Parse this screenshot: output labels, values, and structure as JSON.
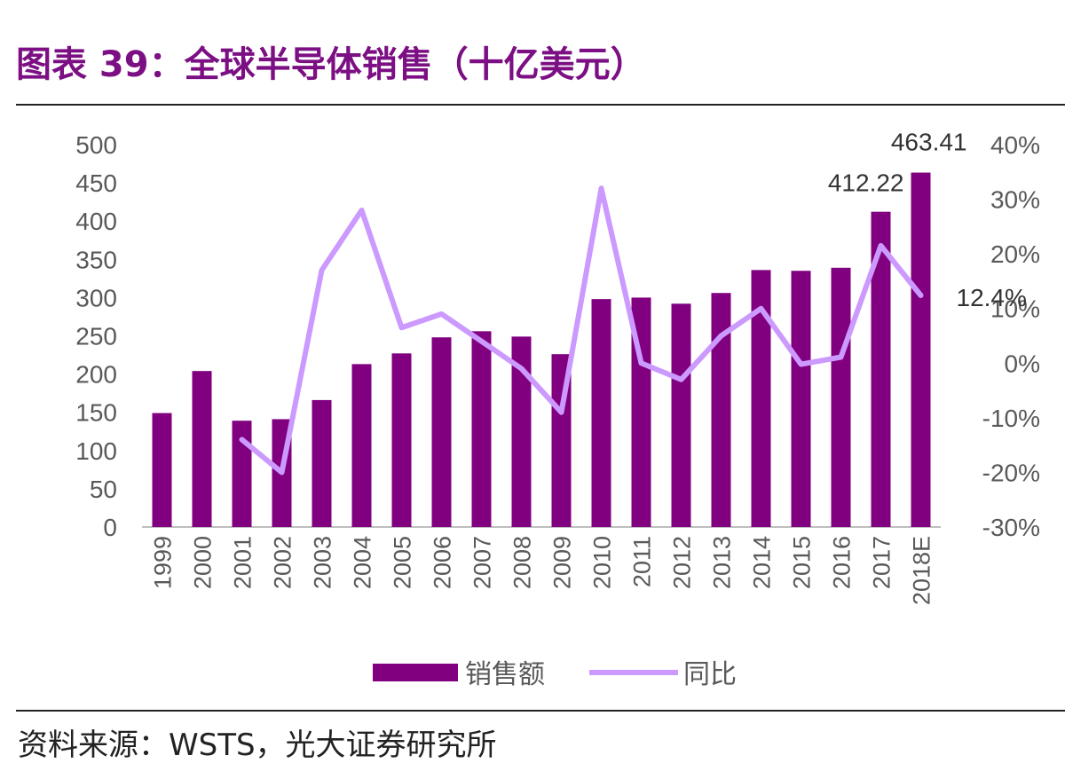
{
  "figure": {
    "title": "图表 39：全球半导体销售（十亿美元）",
    "source": "资料来源：WSTS，光大证券研究所"
  },
  "colors": {
    "bar": "#800080",
    "line": "#cc99ff",
    "title": "#7b0f83",
    "text": "#595959"
  },
  "chart_data": {
    "type": "bar",
    "combo": "bar + line (secondary axis)",
    "categories": [
      "1999",
      "2000",
      "2001",
      "2002",
      "2003",
      "2004",
      "2005",
      "2006",
      "2007",
      "2008",
      "2009",
      "2010",
      "2011",
      "2012",
      "2013",
      "2014",
      "2015",
      "2016",
      "2017",
      "2018E"
    ],
    "series": [
      {
        "name": "销售额",
        "type": "bar",
        "axis": "left",
        "values": [
          149,
          204,
          139,
          141,
          166,
          213,
          227,
          248,
          256,
          249,
          226,
          298,
          300,
          292,
          306,
          336,
          335,
          339,
          412.22,
          463.41
        ]
      },
      {
        "name": "同比",
        "type": "line",
        "axis": "right",
        "values": [
          null,
          null,
          -0.14,
          -0.2,
          0.17,
          0.28,
          0.065,
          0.09,
          0.04,
          -0.01,
          -0.09,
          0.32,
          0.0,
          -0.03,
          0.05,
          0.1,
          -0.002,
          0.011,
          0.215,
          0.124
        ]
      }
    ],
    "y_left": {
      "range": [
        0,
        500
      ],
      "ticks": [
        "0",
        "50",
        "100",
        "150",
        "200",
        "250",
        "300",
        "350",
        "400",
        "450",
        "500"
      ]
    },
    "y_right": {
      "range": [
        -0.3,
        0.4
      ],
      "ticks": [
        "-30%",
        "-20%",
        "-10%",
        "0%",
        "10%",
        "20%",
        "30%",
        "40%"
      ]
    },
    "data_labels": [
      {
        "category": "2017",
        "text": "412.22"
      },
      {
        "category": "2018E",
        "text": "463.41"
      },
      {
        "category": "2018E",
        "text": "12.4%"
      }
    ],
    "legend": {
      "position": "bottom",
      "items": [
        "销售额",
        "同比"
      ]
    },
    "grid": false
  }
}
